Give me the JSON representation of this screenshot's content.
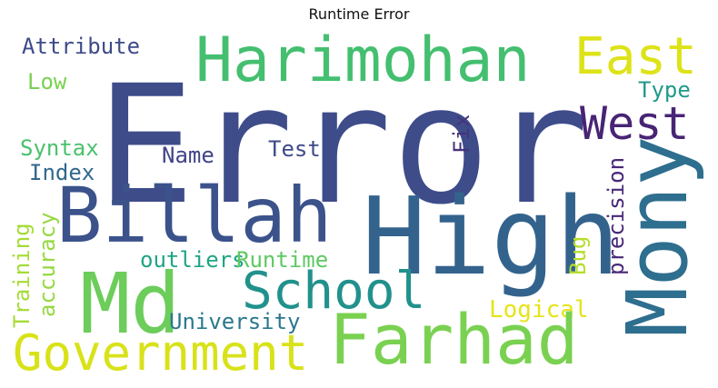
{
  "title": "Runtime Error",
  "words": {
    "error": {
      "text": "Error",
      "color": "#3e4c8a"
    },
    "high": {
      "text": "High",
      "color": "#33638d"
    },
    "harimohan": {
      "text": "Harimohan",
      "color": "#44bf70"
    },
    "billah": {
      "text": "Billah",
      "color": "#3b528b"
    },
    "mony": {
      "text": "Mony",
      "color": "#2e6e8e"
    },
    "farhad": {
      "text": "Farhad",
      "color": "#7ad151"
    },
    "md": {
      "text": "Md",
      "color": "#6ccd5a"
    },
    "government": {
      "text": "Government",
      "color": "#d8e219"
    },
    "school": {
      "text": "School",
      "color": "#21918c"
    },
    "east": {
      "text": "East",
      "color": "#dde318"
    },
    "west": {
      "text": "West",
      "color": "#482475"
    },
    "attribute": {
      "text": "Attribute",
      "color": "#3e4a89"
    },
    "low": {
      "text": "Low",
      "color": "#7ad151"
    },
    "type": {
      "text": "Type",
      "color": "#1f9a8a"
    },
    "syntax": {
      "text": "Syntax",
      "color": "#4ac16d"
    },
    "index": {
      "text": "Index",
      "color": "#31688e"
    },
    "name": {
      "text": "Name",
      "color": "#414487"
    },
    "test": {
      "text": "Test",
      "color": "#3e4a89"
    },
    "fix": {
      "text": "Fix",
      "color": "#46337e"
    },
    "precision": {
      "text": "precision",
      "color": "#482878"
    },
    "training": {
      "text": "Training",
      "color": "#a5db36"
    },
    "accuracy": {
      "text": "accuracy",
      "color": "#95d840"
    },
    "outliers": {
      "text": "outliers",
      "color": "#20a486"
    },
    "runtime": {
      "text": "Runtime",
      "color": "#5ec962"
    },
    "bug": {
      "text": "Bug",
      "color": "#b5de2b"
    },
    "logical": {
      "text": "Logical",
      "color": "#e5e419"
    },
    "university": {
      "text": "University",
      "color": "#2a788e"
    }
  }
}
